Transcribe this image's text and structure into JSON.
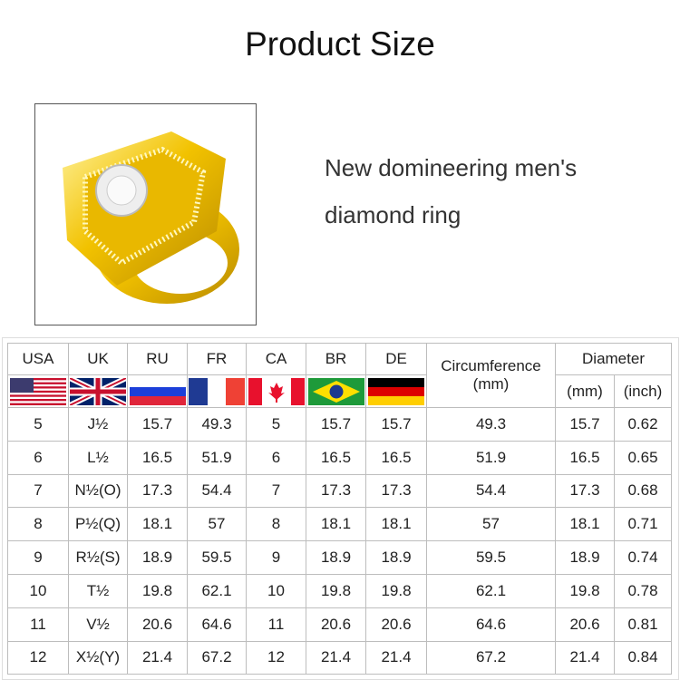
{
  "title": "Product Size",
  "description": [
    "New domineering men's",
    "diamond ring"
  ],
  "table": {
    "country_headers": [
      "USA",
      "UK",
      "RU",
      "FR",
      "CA",
      "BR",
      "DE"
    ],
    "flags": [
      "us-flag-icon",
      "uk-flag-icon",
      "russia-flag-icon",
      "france-flag-icon",
      "canada-flag-icon",
      "brazil-flag-icon",
      "germany-flag-icon"
    ],
    "circumference_header": "Circumference",
    "circumference_unit": "(mm)",
    "diameter_header": "Diameter",
    "diameter_units": [
      "(mm)",
      "(inch)"
    ],
    "rows": [
      [
        "5",
        "J½",
        "15.7",
        "49.3",
        "5",
        "15.7",
        "15.7",
        "49.3",
        "15.7",
        "0.62"
      ],
      [
        "6",
        "L½",
        "16.5",
        "51.9",
        "6",
        "16.5",
        "16.5",
        "51.9",
        "16.5",
        "0.65"
      ],
      [
        "7",
        "N½(O)",
        "17.3",
        "54.4",
        "7",
        "17.3",
        "17.3",
        "54.4",
        "17.3",
        "0.68"
      ],
      [
        "8",
        "P½(Q)",
        "18.1",
        "57",
        "8",
        "18.1",
        "18.1",
        "57",
        "18.1",
        "0.71"
      ],
      [
        "9",
        "R½(S)",
        "18.9",
        "59.5",
        "9",
        "18.9",
        "18.9",
        "59.5",
        "18.9",
        "0.74"
      ],
      [
        "10",
        "T½",
        "19.8",
        "62.1",
        "10",
        "19.8",
        "19.8",
        "62.1",
        "19.8",
        "0.78"
      ],
      [
        "11",
        "V½",
        "20.6",
        "64.6",
        "11",
        "20.6",
        "20.6",
        "64.6",
        "20.6",
        "0.81"
      ],
      [
        "12",
        "X½(Y)",
        "21.4",
        "67.2",
        "12",
        "21.4",
        "21.4",
        "67.2",
        "21.4",
        "0.84"
      ]
    ]
  }
}
